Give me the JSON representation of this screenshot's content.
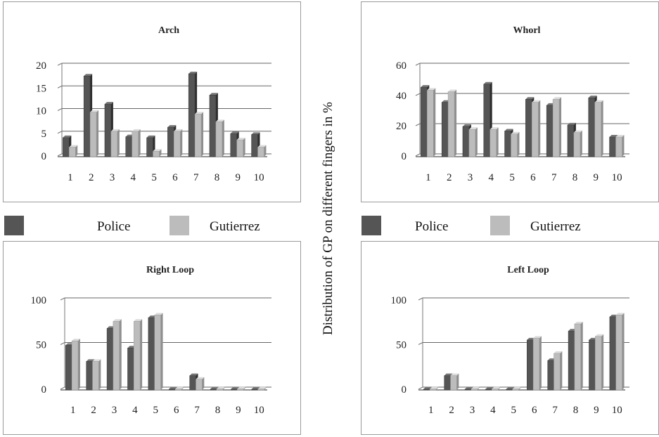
{
  "colors": {
    "police": "#555555",
    "gutierrez": "#bcbcbc",
    "frame": "#9a9a9a"
  },
  "legend": {
    "police": "Police",
    "gutierrez": "Gutierrez"
  },
  "side_label": "Distribution of GP on different fingers in %",
  "chart_data": [
    {
      "type": "bar",
      "title": "Arch",
      "categories": [
        "1",
        "2",
        "3",
        "4",
        "5",
        "6",
        "7",
        "8",
        "9",
        "10"
      ],
      "ylim": [
        0,
        20
      ],
      "yticks": [
        0,
        5,
        10,
        15,
        20
      ],
      "series": [
        {
          "name": "Police",
          "values": [
            4.2,
            17.8,
            11.6,
            4.4,
            4.2,
            6.5,
            18.3,
            13.6,
            5.1,
            4.9
          ]
        },
        {
          "name": "Gutierrez",
          "values": [
            2.1,
            9.8,
            5.6,
            5.6,
            1.2,
            5.6,
            9.4,
            7.7,
            3.7,
            2.1
          ]
        }
      ]
    },
    {
      "type": "bar",
      "title": "Whorl",
      "categories": [
        "1",
        "2",
        "3",
        "4",
        "5",
        "6",
        "7",
        "8",
        "9",
        "10"
      ],
      "ylim": [
        0,
        60
      ],
      "yticks": [
        0,
        20,
        40,
        60
      ],
      "series": [
        {
          "name": "Police",
          "values": [
            46,
            36,
            20,
            48,
            17,
            38,
            34,
            21,
            39,
            13
          ]
        },
        {
          "name": "Gutierrez",
          "values": [
            44,
            43,
            18,
            18,
            15,
            36,
            38,
            16,
            36,
            13
          ]
        }
      ]
    },
    {
      "type": "bar",
      "title": "Right Loop",
      "categories": [
        "1",
        "2",
        "3",
        "4",
        "5",
        "6",
        "7",
        "8",
        "9",
        "10"
      ],
      "ylim": [
        0,
        100
      ],
      "yticks": [
        0,
        50,
        100
      ],
      "series": [
        {
          "name": "Police",
          "values": [
            50,
            32,
            69,
            47,
            81,
            1,
            16,
            1,
            1,
            1
          ]
        },
        {
          "name": "Gutierrez",
          "values": [
            55,
            32,
            77,
            77,
            84,
            1,
            12,
            1,
            1,
            1
          ]
        }
      ]
    },
    {
      "type": "bar",
      "title": "Left Loop",
      "categories": [
        "1",
        "2",
        "3",
        "4",
        "5",
        "6",
        "7",
        "8",
        "9",
        "10"
      ],
      "ylim": [
        0,
        100
      ],
      "yticks": [
        0,
        50,
        100
      ],
      "series": [
        {
          "name": "Police",
          "values": [
            1,
            16,
            1,
            1,
            1,
            56,
            33,
            66,
            56,
            82
          ]
        },
        {
          "name": "Gutierrez",
          "values": [
            1,
            16,
            1,
            1,
            1,
            58,
            41,
            74,
            60,
            84
          ]
        }
      ]
    }
  ]
}
